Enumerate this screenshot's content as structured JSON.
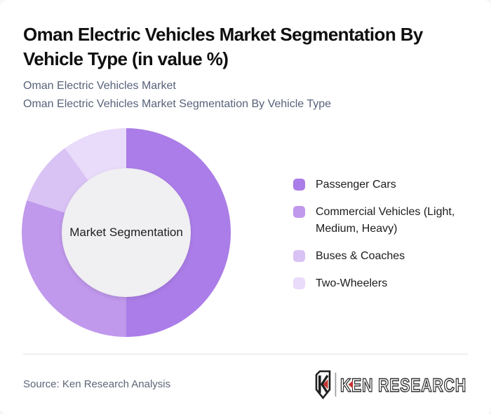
{
  "page": {
    "background": "#f6f6f8",
    "card_background": "#ffffff"
  },
  "header": {
    "title": "Oman Electric Vehicles Market Segmentation By Vehicle Type (in value %)",
    "subtitle_line1": "Oman Electric Vehicles Market",
    "subtitle_line2": "Oman Electric Vehicles Market Segmentation By Vehicle Type"
  },
  "chart_data": {
    "type": "pie",
    "style": "donut",
    "title": "Oman Electric Vehicles Market Segmentation By Vehicle Type (in value %)",
    "center_label": "Market Segmentation",
    "categories": [
      "Passenger Cars",
      "Commercial Vehicles (Light, Medium, Heavy)",
      "Buses & Coaches",
      "Two-Wheelers"
    ],
    "values": [
      50,
      30,
      10,
      10
    ],
    "unit": "percent of value",
    "colors": [
      "#ab7de8",
      "#c098ec",
      "#d9c2f4",
      "#e9dbfa"
    ],
    "center_circle_color": "#f0eff1",
    "start_angle_deg_from_12_clockwise": 0,
    "legend_position": "right",
    "data_labels_shown": false
  },
  "legend": {
    "items": [
      {
        "label": "Passenger Cars",
        "color": "#ab7de8"
      },
      {
        "label": "Commercial Vehicles (Light, Medium, Heavy)",
        "color": "#c098ec"
      },
      {
        "label": "Buses & Coaches",
        "color": "#d9c2f4"
      },
      {
        "label": "Two-Wheelers",
        "color": "#e9dbfa"
      }
    ]
  },
  "footer": {
    "source": "Source: Ken Research Analysis",
    "logo": {
      "brand": "KEN RESEARCH",
      "accent_color": "#c4332d",
      "ink_color": "#2b2b2b"
    }
  }
}
